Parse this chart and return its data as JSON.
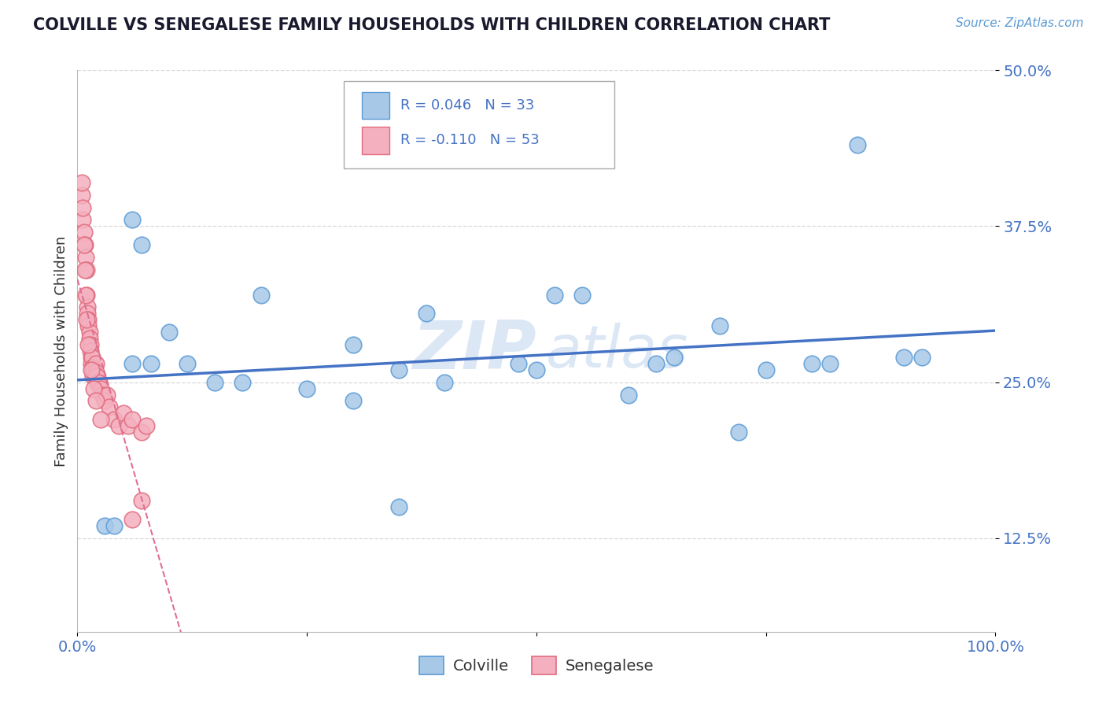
{
  "title": "COLVILLE VS SENEGALESE FAMILY HOUSEHOLDS WITH CHILDREN CORRELATION CHART",
  "source": "Source: ZipAtlas.com",
  "ylabel": "Family Households with Children",
  "xlim": [
    0,
    1.0
  ],
  "ylim": [
    0.05,
    0.5
  ],
  "ytick_vals": [
    0.125,
    0.25,
    0.375,
    0.5
  ],
  "ytick_labels": [
    "12.5%",
    "25.0%",
    "37.5%",
    "50.0%"
  ],
  "colville_color": "#a8c8e8",
  "colville_edge": "#5b9bd5",
  "senegalese_color": "#f4b0bf",
  "senegalese_edge": "#e06c7e",
  "trend_colville_color": "#4472c4",
  "trend_senegalese_color": "#e07090",
  "R_colville": 0.046,
  "N_colville": 33,
  "R_senegalese": -0.11,
  "N_senegalese": 53,
  "colville_x": [
    0.03,
    0.04,
    0.06,
    0.07,
    0.1,
    0.15,
    0.2,
    0.3,
    0.35,
    0.4,
    0.38,
    0.5,
    0.52,
    0.6,
    0.65,
    0.7,
    0.75,
    0.8,
    0.85,
    0.9,
    0.92,
    0.35,
    0.48,
    0.55,
    0.63,
    0.72,
    0.82,
    0.06,
    0.08,
    0.12,
    0.18,
    0.25,
    0.3
  ],
  "colville_y": [
    0.135,
    0.135,
    0.38,
    0.36,
    0.29,
    0.25,
    0.32,
    0.28,
    0.26,
    0.25,
    0.305,
    0.26,
    0.32,
    0.24,
    0.27,
    0.295,
    0.26,
    0.265,
    0.44,
    0.27,
    0.27,
    0.15,
    0.265,
    0.32,
    0.265,
    0.21,
    0.265,
    0.265,
    0.265,
    0.265,
    0.25,
    0.245,
    0.235
  ],
  "senegalese_x": [
    0.005,
    0.006,
    0.007,
    0.008,
    0.009,
    0.01,
    0.01,
    0.011,
    0.011,
    0.012,
    0.012,
    0.013,
    0.013,
    0.014,
    0.014,
    0.015,
    0.015,
    0.016,
    0.016,
    0.017,
    0.017,
    0.018,
    0.019,
    0.02,
    0.02,
    0.021,
    0.022,
    0.023,
    0.025,
    0.027,
    0.03,
    0.032,
    0.035,
    0.04,
    0.045,
    0.05,
    0.055,
    0.06,
    0.07,
    0.075,
    0.005,
    0.006,
    0.007,
    0.008,
    0.009,
    0.01,
    0.012,
    0.015,
    0.018,
    0.02,
    0.025,
    0.06,
    0.07
  ],
  "senegalese_y": [
    0.4,
    0.38,
    0.37,
    0.36,
    0.35,
    0.34,
    0.32,
    0.31,
    0.305,
    0.3,
    0.295,
    0.29,
    0.285,
    0.28,
    0.275,
    0.27,
    0.265,
    0.27,
    0.262,
    0.26,
    0.255,
    0.26,
    0.255,
    0.265,
    0.258,
    0.255,
    0.25,
    0.25,
    0.245,
    0.24,
    0.235,
    0.24,
    0.23,
    0.22,
    0.215,
    0.225,
    0.215,
    0.22,
    0.21,
    0.215,
    0.41,
    0.39,
    0.36,
    0.34,
    0.32,
    0.3,
    0.28,
    0.26,
    0.245,
    0.235,
    0.22,
    0.14,
    0.155
  ],
  "background_color": "#ffffff",
  "grid_color": "#d0d0d0",
  "watermark_color": "#ccddf0"
}
